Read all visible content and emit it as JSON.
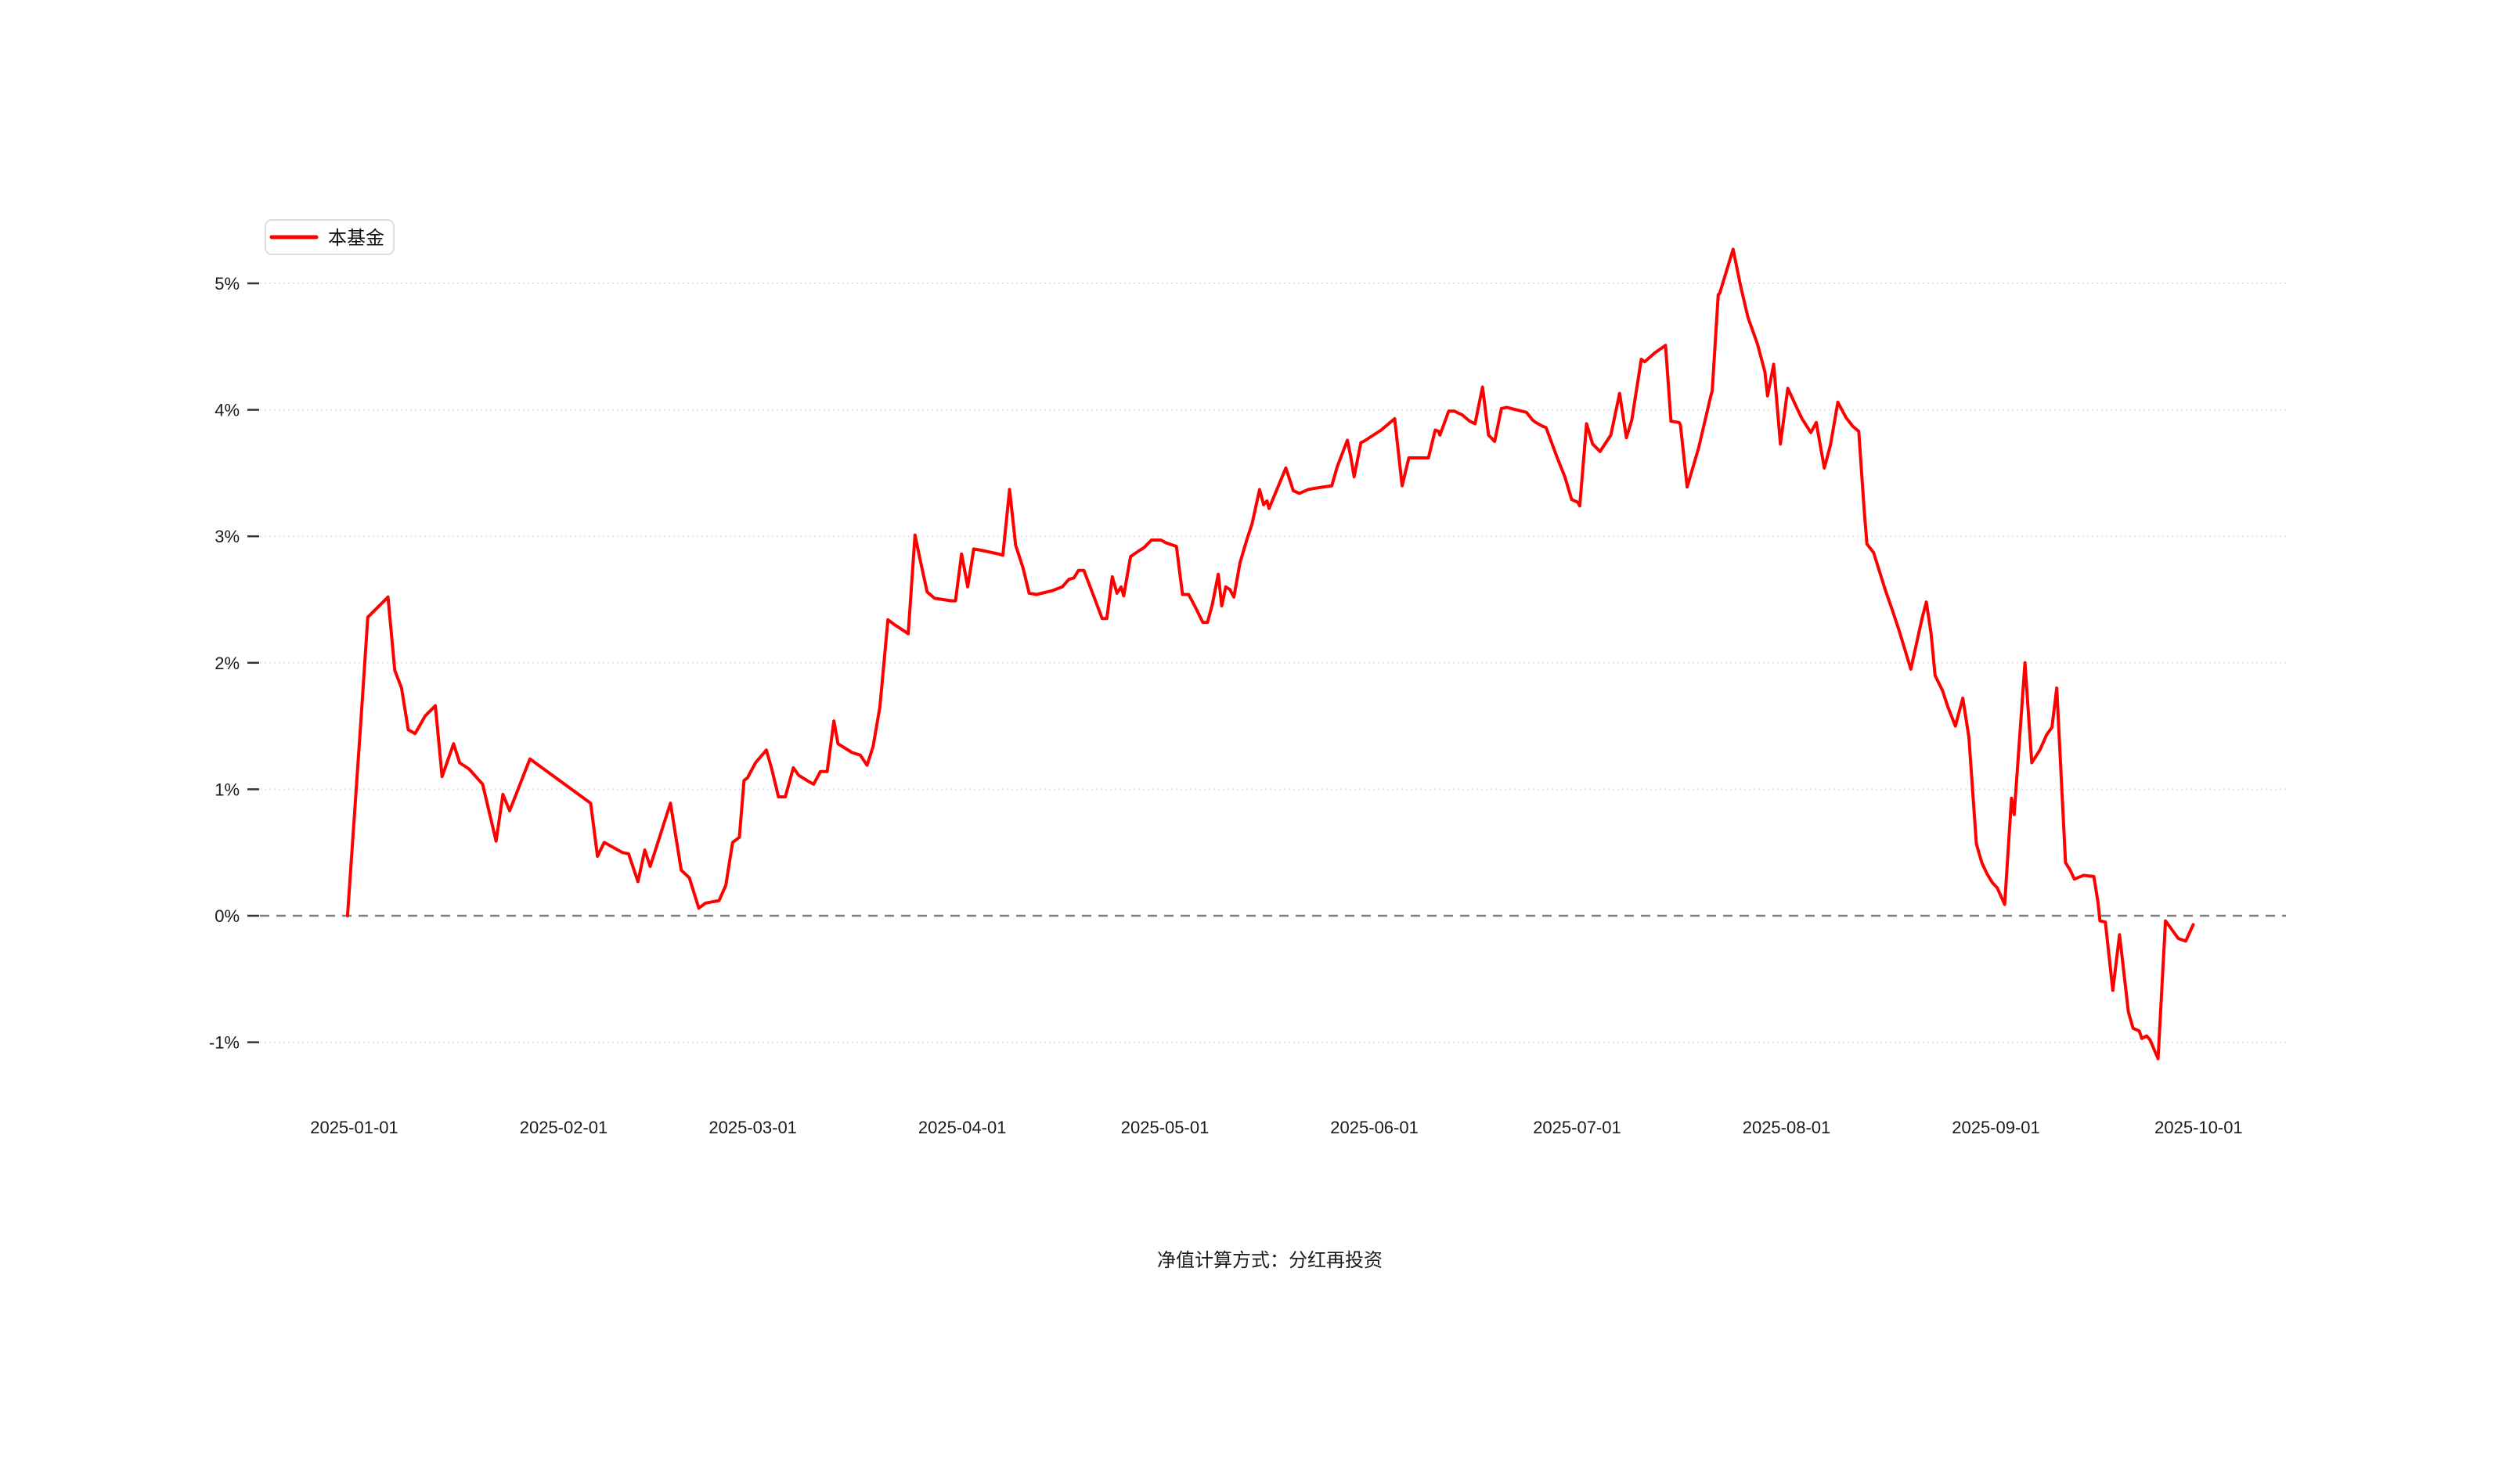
{
  "legend": {
    "label": "本基金"
  },
  "footer": {
    "text": "净值计算方式：分红再投资"
  },
  "colors": {
    "line": "#ff0000",
    "grid": "#e3e3e3",
    "zero_line": "#7f7f7f",
    "tick": "#333333",
    "text": "#1a1a1a",
    "legend_border": "#dcdcdc",
    "background": "#ffffff"
  },
  "chart_data": {
    "type": "line",
    "title": "",
    "xlabel": "",
    "ylabel": "",
    "legend_position": "top-left",
    "grid": true,
    "zero_line_style": "dashed",
    "x_axis": {
      "unit": "date",
      "tick_labels": [
        "2025-01-01",
        "2025-02-01",
        "2025-03-01",
        "2025-04-01",
        "2025-05-01",
        "2025-06-01",
        "2025-07-01",
        "2025-08-01",
        "2025-09-01",
        "2025-10-01"
      ],
      "tick_day_offsets": [
        0,
        31,
        59,
        90,
        120,
        151,
        181,
        212,
        243,
        273
      ]
    },
    "y_axis": {
      "unit": "percent",
      "tick_labels": [
        "5%",
        "4%",
        "3%",
        "2%",
        "1%",
        "0%",
        "-1%"
      ],
      "tick_values": [
        5,
        4,
        3,
        2,
        1,
        0,
        -1
      ],
      "range": [
        -1.55,
        5.55
      ]
    },
    "series": [
      {
        "name": "本基金",
        "color": "#ff0000",
        "x_unit": "days_from_2025-01-01",
        "y_unit": "percent",
        "points": [
          [
            -1,
            0.0
          ],
          [
            1,
            1.55
          ],
          [
            2,
            2.36
          ],
          [
            5,
            2.52
          ],
          [
            6,
            1.94
          ],
          [
            7,
            1.8
          ],
          [
            8,
            1.47
          ],
          [
            9,
            1.44
          ],
          [
            10.5,
            1.58
          ],
          [
            12,
            1.66
          ],
          [
            13,
            1.1
          ],
          [
            14.7,
            1.36
          ],
          [
            15.6,
            1.21
          ],
          [
            17,
            1.16
          ],
          [
            19,
            1.04
          ],
          [
            21,
            0.59
          ],
          [
            22,
            0.96
          ],
          [
            23,
            0.83
          ],
          [
            26,
            1.24
          ],
          [
            35,
            0.89
          ],
          [
            36,
            0.47
          ],
          [
            37,
            0.58
          ],
          [
            39.7,
            0.5
          ],
          [
            40.6,
            0.49
          ],
          [
            42,
            0.27
          ],
          [
            43,
            0.52
          ],
          [
            43.8,
            0.39
          ],
          [
            46.8,
            0.89
          ],
          [
            48.4,
            0.36
          ],
          [
            49.6,
            0.3
          ],
          [
            51,
            0.06
          ],
          [
            52,
            0.1
          ],
          [
            54,
            0.12
          ],
          [
            55,
            0.24
          ],
          [
            56,
            0.58
          ],
          [
            57,
            0.62
          ],
          [
            57.7,
            1.07
          ],
          [
            58.2,
            1.09
          ],
          [
            59.4,
            1.21
          ],
          [
            61,
            1.31
          ],
          [
            61.8,
            1.16
          ],
          [
            62.8,
            0.94
          ],
          [
            63.8,
            0.94
          ],
          [
            65,
            1.17
          ],
          [
            65.8,
            1.11
          ],
          [
            67.3,
            1.06
          ],
          [
            68,
            1.04
          ],
          [
            69,
            1.14
          ],
          [
            70,
            1.14
          ],
          [
            71,
            1.54
          ],
          [
            71.6,
            1.36
          ],
          [
            72.2,
            1.34
          ],
          [
            73.7,
            1.29
          ],
          [
            74.9,
            1.27
          ],
          [
            75.9,
            1.19
          ],
          [
            76.8,
            1.34
          ],
          [
            77.8,
            1.65
          ],
          [
            79,
            2.34
          ],
          [
            80,
            2.3
          ],
          [
            82,
            2.23
          ],
          [
            83,
            3.01
          ],
          [
            83.7,
            2.83
          ],
          [
            84.8,
            2.56
          ],
          [
            85.9,
            2.51
          ],
          [
            88.4,
            2.49
          ],
          [
            89,
            2.49
          ],
          [
            89.9,
            2.86
          ],
          [
            90.8,
            2.6
          ],
          [
            91.7,
            2.9
          ],
          [
            92.8,
            2.89
          ],
          [
            95.4,
            2.86
          ],
          [
            96,
            2.85
          ],
          [
            97,
            3.37
          ],
          [
            97.9,
            2.93
          ],
          [
            99,
            2.75
          ],
          [
            99.9,
            2.55
          ],
          [
            101,
            2.54
          ],
          [
            103.3,
            2.57
          ],
          [
            104.8,
            2.6
          ],
          [
            105.8,
            2.66
          ],
          [
            106.5,
            2.67
          ],
          [
            107.2,
            2.73
          ],
          [
            108,
            2.73
          ],
          [
            109.5,
            2.52
          ],
          [
            110.7,
            2.35
          ],
          [
            111.4,
            2.35
          ],
          [
            112.2,
            2.68
          ],
          [
            112.9,
            2.55
          ],
          [
            113.5,
            2.6
          ],
          [
            113.9,
            2.53
          ],
          [
            114.9,
            2.84
          ],
          [
            116,
            2.88
          ],
          [
            116.9,
            2.91
          ],
          [
            118,
            2.97
          ],
          [
            119.4,
            2.97
          ],
          [
            120.1,
            2.95
          ],
          [
            121.7,
            2.92
          ],
          [
            122.6,
            2.54
          ],
          [
            123.5,
            2.54
          ],
          [
            124.5,
            2.44
          ],
          [
            125.6,
            2.32
          ],
          [
            126.3,
            2.32
          ],
          [
            127,
            2.46
          ],
          [
            127.9,
            2.7
          ],
          [
            128.4,
            2.45
          ],
          [
            129,
            2.6
          ],
          [
            129.6,
            2.58
          ],
          [
            130.2,
            2.52
          ],
          [
            131.1,
            2.79
          ],
          [
            132.1,
            2.97
          ],
          [
            132.9,
            3.1
          ],
          [
            134,
            3.37
          ],
          [
            134.6,
            3.25
          ],
          [
            135.1,
            3.28
          ],
          [
            135.4,
            3.22
          ],
          [
            137.9,
            3.54
          ],
          [
            139,
            3.36
          ],
          [
            139.9,
            3.34
          ],
          [
            141.2,
            3.37
          ],
          [
            142.2,
            3.38
          ],
          [
            144.7,
            3.4
          ],
          [
            145.5,
            3.55
          ],
          [
            147,
            3.76
          ],
          [
            147.5,
            3.63
          ],
          [
            148,
            3.47
          ],
          [
            149,
            3.74
          ],
          [
            149.4,
            3.75
          ],
          [
            152,
            3.84
          ],
          [
            154,
            3.93
          ],
          [
            155.1,
            3.4
          ],
          [
            156.1,
            3.62
          ],
          [
            159,
            3.62
          ],
          [
            160,
            3.84
          ],
          [
            160.5,
            3.83
          ],
          [
            160.7,
            3.8
          ],
          [
            162,
            3.99
          ],
          [
            162.8,
            3.99
          ],
          [
            164,
            3.96
          ],
          [
            165.1,
            3.91
          ],
          [
            165.9,
            3.89
          ],
          [
            167,
            4.18
          ],
          [
            167.9,
            3.8
          ],
          [
            168.8,
            3.75
          ],
          [
            169.8,
            4.01
          ],
          [
            170.6,
            4.02
          ],
          [
            172,
            4.0
          ],
          [
            173.5,
            3.98
          ],
          [
            174.4,
            3.92
          ],
          [
            174.9,
            3.9
          ],
          [
            175.9,
            3.87
          ],
          [
            176.4,
            3.86
          ],
          [
            178,
            3.63
          ],
          [
            179.2,
            3.47
          ],
          [
            180.2,
            3.29
          ],
          [
            181.1,
            3.27
          ],
          [
            181.4,
            3.24
          ],
          [
            182.4,
            3.89
          ],
          [
            183.3,
            3.73
          ],
          [
            184.4,
            3.67
          ],
          [
            186,
            3.8
          ],
          [
            187.3,
            4.13
          ],
          [
            188.3,
            3.78
          ],
          [
            189.1,
            3.92
          ],
          [
            190.5,
            4.4
          ],
          [
            191,
            4.38
          ],
          [
            192.5,
            4.45
          ],
          [
            194.1,
            4.51
          ],
          [
            194.9,
            3.91
          ],
          [
            196.1,
            3.9
          ],
          [
            196.3,
            3.88
          ],
          [
            197.3,
            3.39
          ],
          [
            199,
            3.7
          ],
          [
            200.8,
            4.11
          ],
          [
            201,
            4.15
          ],
          [
            201.9,
            4.91
          ],
          [
            202.1,
            4.92
          ],
          [
            204.1,
            5.27
          ],
          [
            205.2,
            4.98
          ],
          [
            206.3,
            4.73
          ],
          [
            207.7,
            4.52
          ],
          [
            208.8,
            4.3
          ],
          [
            209.2,
            4.11
          ],
          [
            210.1,
            4.36
          ],
          [
            211.1,
            3.73
          ],
          [
            212.2,
            4.17
          ],
          [
            213.4,
            4.03
          ],
          [
            214.3,
            3.93
          ],
          [
            215.6,
            3.82
          ],
          [
            216.4,
            3.9
          ],
          [
            217.6,
            3.54
          ],
          [
            218.5,
            3.72
          ],
          [
            219.6,
            4.06
          ],
          [
            220.8,
            3.94
          ],
          [
            221.8,
            3.87
          ],
          [
            222.7,
            3.83
          ],
          [
            223.5,
            3.21
          ],
          [
            223.9,
            2.94
          ],
          [
            224.9,
            2.87
          ],
          [
            226.6,
            2.58
          ],
          [
            227.7,
            2.41
          ],
          [
            228.7,
            2.25
          ],
          [
            230.4,
            1.95
          ],
          [
            232.1,
            2.36
          ],
          [
            232.7,
            2.48
          ],
          [
            233.4,
            2.23
          ],
          [
            234,
            1.9
          ],
          [
            235.1,
            1.78
          ],
          [
            235.9,
            1.65
          ],
          [
            237,
            1.5
          ],
          [
            238.1,
            1.72
          ],
          [
            239,
            1.41
          ],
          [
            240.1,
            0.57
          ],
          [
            240.9,
            0.42
          ],
          [
            241.7,
            0.33
          ],
          [
            242.5,
            0.26
          ],
          [
            243.2,
            0.22
          ],
          [
            244.3,
            0.09
          ],
          [
            245.3,
            0.93
          ],
          [
            245.7,
            0.8
          ],
          [
            247.3,
            2.0
          ],
          [
            248.3,
            1.21
          ],
          [
            249.5,
            1.31
          ],
          [
            250.5,
            1.43
          ],
          [
            251.3,
            1.49
          ],
          [
            252,
            1.8
          ],
          [
            252.7,
            1.06
          ],
          [
            253.3,
            0.42
          ],
          [
            254,
            0.36
          ],
          [
            254.6,
            0.29
          ],
          [
            256,
            0.32
          ],
          [
            257.5,
            0.31
          ],
          [
            258.1,
            0.11
          ],
          [
            258.4,
            -0.04
          ],
          [
            259.2,
            -0.05
          ],
          [
            260.3,
            -0.59
          ],
          [
            261.3,
            -0.15
          ],
          [
            262.6,
            -0.76
          ],
          [
            263.3,
            -0.89
          ],
          [
            264.2,
            -0.91
          ],
          [
            264.6,
            -0.97
          ],
          [
            265.3,
            -0.95
          ],
          [
            265.8,
            -0.98
          ],
          [
            267,
            -1.13
          ],
          [
            268.1,
            -0.04
          ],
          [
            270,
            -0.18
          ],
          [
            271.1,
            -0.2
          ],
          [
            272.2,
            -0.07
          ]
        ]
      }
    ]
  }
}
